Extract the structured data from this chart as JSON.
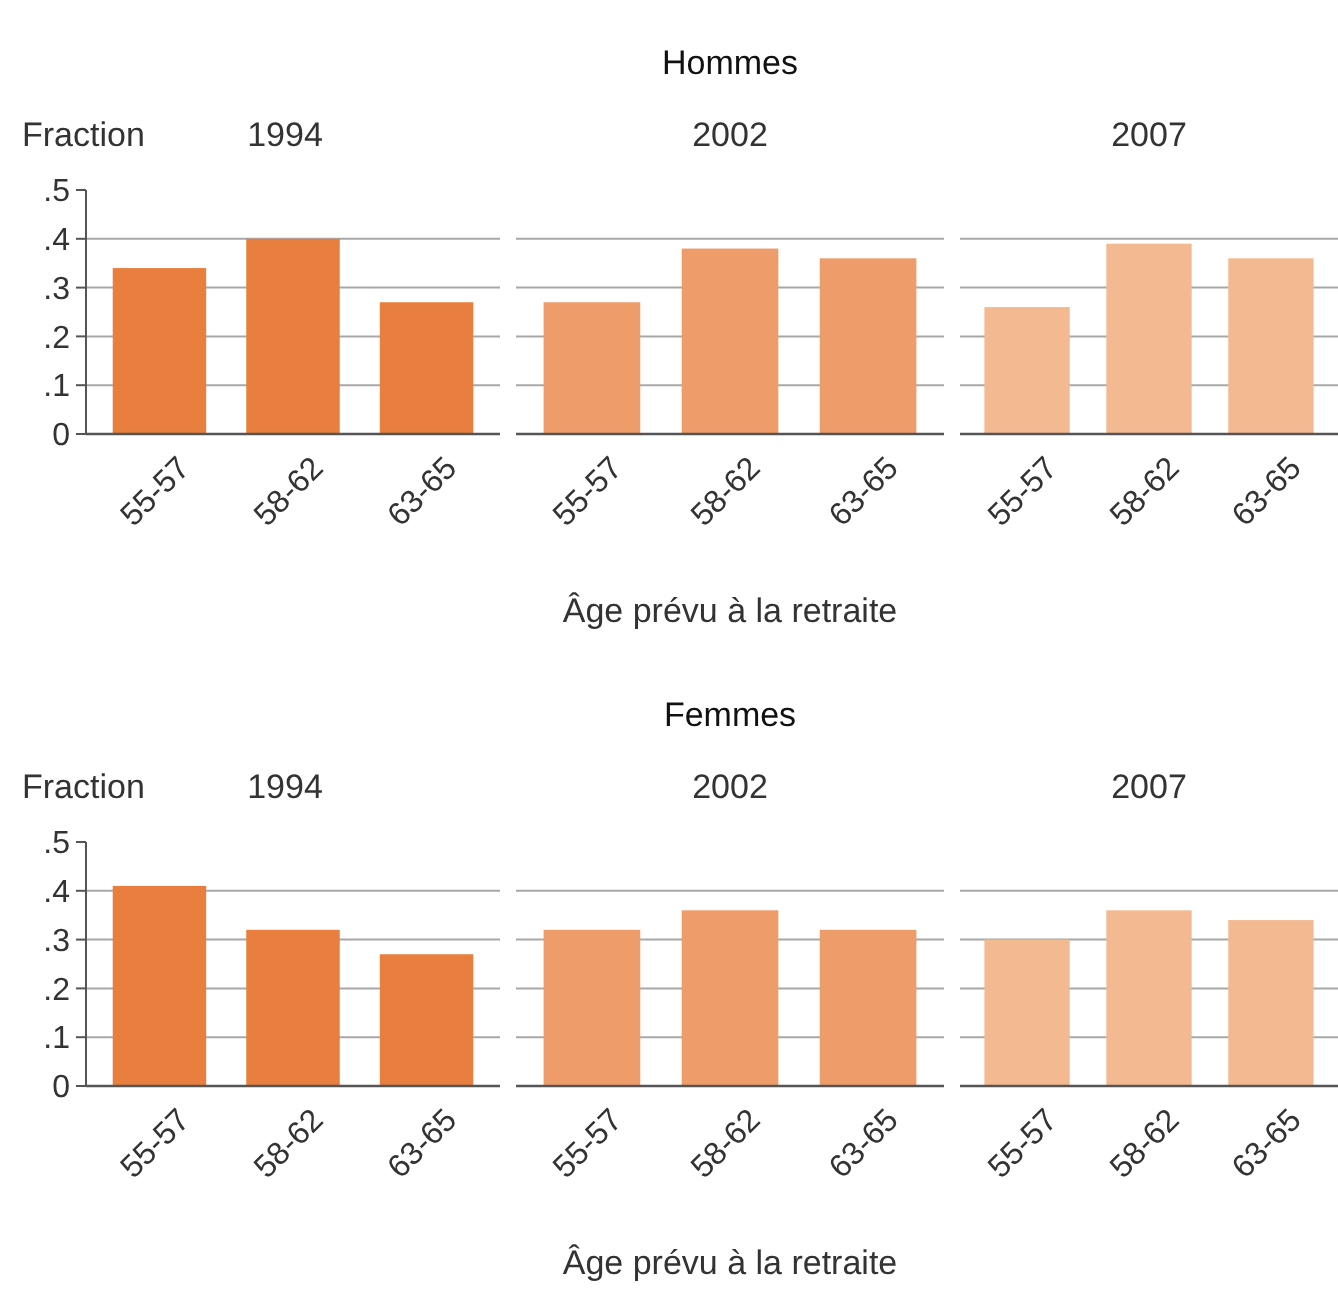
{
  "chart_data": [
    {
      "type": "bar",
      "title": "1994",
      "ylabel": "Fraction",
      "categories": [
        "55-57",
        "58-62",
        "63-65"
      ],
      "values": [
        0.34,
        0.4,
        0.27
      ],
      "color": "#e97f3e",
      "ylim": [
        0,
        0.5
      ],
      "yticks": [
        0,
        {
          "value": 0.1,
          "label": ".1"
        },
        {
          "value": 0.2,
          "label": ".2"
        },
        {
          "value": 0.3,
          "label": ".3"
        },
        {
          "value": 0.4,
          "label": ".4"
        },
        {
          "value": 0.5,
          "label": ".5"
        }
      ],
      "grid": "y"
    },
    {
      "type": "bar",
      "title": "2002",
      "annotations": [
        "Hommes"
      ],
      "xlabel": "Âge prévu à la retraite",
      "categories": [
        "55-57",
        "58-62",
        "63-65"
      ],
      "values": [
        0.27,
        0.38,
        0.36
      ],
      "color": "#ee9c69",
      "ylim": [
        0,
        0.5
      ],
      "grid": "y",
      "tick_labels": "x"
    },
    {
      "type": "bar",
      "title": "2007",
      "categories": [
        "55-57",
        "58-62",
        "63-65"
      ],
      "values": [
        0.26,
        0.39,
        0.36
      ],
      "color": "#f3b990",
      "ylim": [
        0,
        0.5
      ],
      "grid": "y",
      "tick_labels": "x"
    },
    {
      "type": "bar",
      "title": "1994",
      "ylabel": "Fraction",
      "categories": [
        "55-57",
        "58-62",
        "63-65"
      ],
      "values": [
        0.41,
        0.32,
        0.27
      ],
      "color": "#e97f3e",
      "ylim": [
        0,
        0.5
      ],
      "yticks": [
        0,
        {
          "value": 0.1,
          "label": ".1"
        },
        {
          "value": 0.2,
          "label": ".2"
        },
        {
          "value": 0.3,
          "label": ".3"
        },
        {
          "value": 0.4,
          "label": ".4"
        },
        {
          "value": 0.5,
          "label": ".5"
        }
      ],
      "grid": "y"
    },
    {
      "type": "bar",
      "title": "2002",
      "annotations": [
        "Femmes"
      ],
      "xlabel": "Âge prévu à la retraite",
      "categories": [
        "55-57",
        "58-62",
        "63-65"
      ],
      "values": [
        0.32,
        0.36,
        0.32
      ],
      "color": "#ee9c69",
      "ylim": [
        0,
        0.5
      ],
      "grid": "y",
      "tick_labels": "x"
    },
    {
      "type": "bar",
      "title": "2007",
      "categories": [
        "55-57",
        "58-62",
        "63-65"
      ],
      "values": [
        0.3,
        0.36,
        0.34
      ],
      "color": "#f3b990",
      "ylim": [
        0,
        0.5
      ],
      "grid": "y",
      "tick_labels": "x"
    }
  ]
}
